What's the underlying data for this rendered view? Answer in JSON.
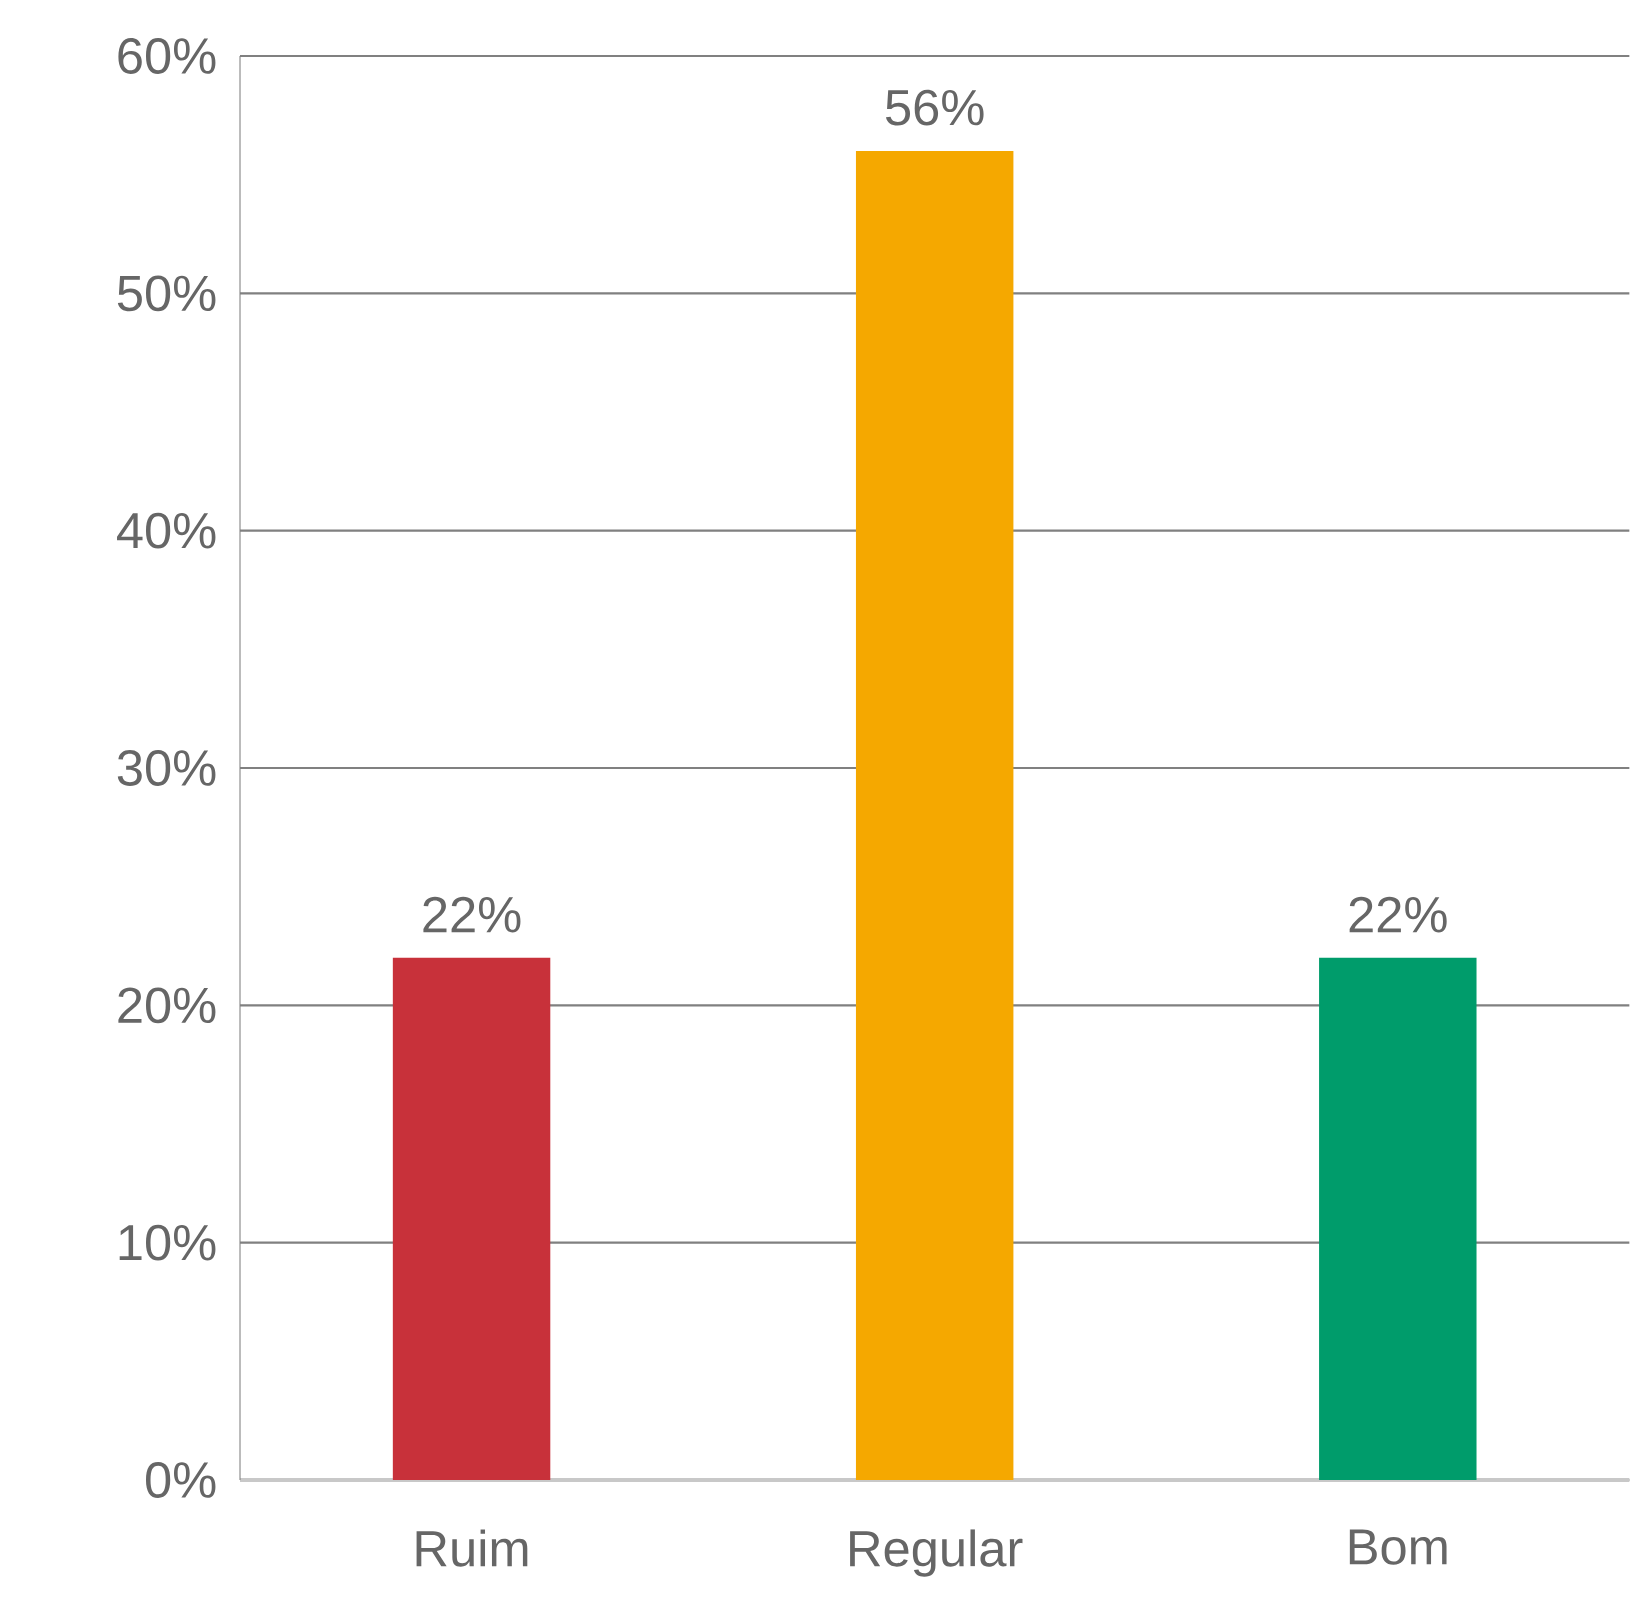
{
  "chart_data": {
    "type": "bar",
    "categories": [
      "Ruim",
      "Regular",
      "Bom"
    ],
    "values": [
      22,
      56,
      22
    ],
    "colors": [
      "#c8313a",
      "#f5a800",
      "#009c6b"
    ],
    "value_labels": [
      "22%",
      "56%",
      "22%"
    ],
    "ylim": [
      0,
      60
    ],
    "yticks": [
      {
        "value": 0,
        "label": "0%"
      },
      {
        "value": 10,
        "label": "10%"
      },
      {
        "value": 20,
        "label": "20%"
      },
      {
        "value": 30,
        "label": "30%"
      },
      {
        "value": 40,
        "label": "40%"
      },
      {
        "value": 50,
        "label": "50%"
      },
      {
        "value": 60,
        "label": "60%"
      }
    ],
    "grid": "y"
  }
}
